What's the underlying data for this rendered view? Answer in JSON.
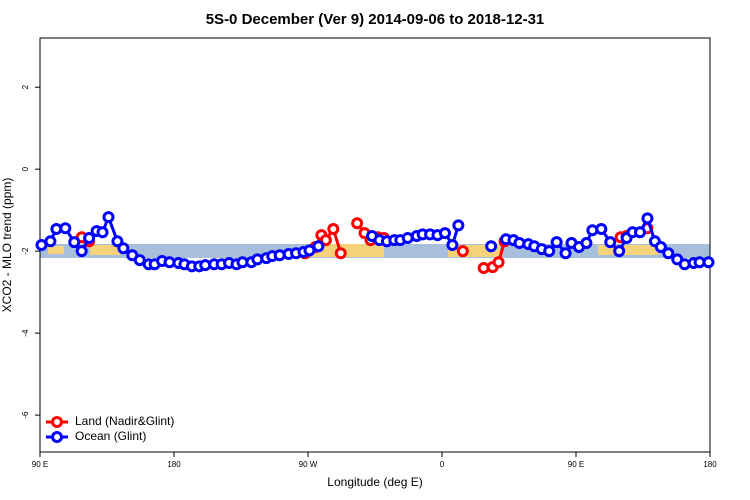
{
  "chart_data": {
    "type": "line",
    "title": "5S-0 December (Ver 9)   2014-09-06 to 2018-12-31",
    "x_label": "Longitude (deg E)",
    "y_label": "XCO2 - MLO trend (ppm)",
    "xlim": [
      90,
      540
    ],
    "xticks": [
      {
        "value": 90,
        "label": "90 E"
      },
      {
        "value": 180,
        "label": "180"
      },
      {
        "value": 270,
        "label": "90 W"
      },
      {
        "value": 360,
        "label": "0"
      },
      {
        "value": 450,
        "label": "90 E"
      },
      {
        "value": 540,
        "label": "180"
      }
    ],
    "ylim": [
      -6.9,
      3.2
    ],
    "yticks": [
      -6,
      -4,
      -2,
      0,
      2
    ],
    "legend": "bottom-left",
    "series": [
      {
        "name": "Land (Nadir&Glint)",
        "color": "#ff0000",
        "x": [
          118,
          123,
          null,
          268,
          275,
          279,
          282,
          287,
          292,
          null,
          303,
          308,
          312,
          317,
          321,
          null,
          374,
          null,
          388,
          394,
          398,
          402,
          null,
          480,
          484,
          null,
          498
        ],
        "values": [
          -1.66,
          -1.76,
          null,
          -2.05,
          -1.9,
          -1.61,
          -1.73,
          -1.46,
          -2.05,
          null,
          -1.32,
          -1.56,
          -1.73,
          -1.66,
          -1.68,
          null,
          -2.0,
          null,
          -2.41,
          -2.39,
          -2.27,
          -1.76,
          null,
          -1.66,
          -1.63,
          null,
          -1.44
        ]
      },
      {
        "name": "Ocean (Glint)",
        "color": "#0000ff",
        "x": [
          91,
          97,
          101,
          107,
          113,
          118,
          123,
          128,
          132,
          136,
          142,
          146,
          152,
          157,
          163,
          167,
          172,
          177,
          183,
          187,
          192,
          197,
          201,
          207,
          212,
          217,
          222,
          226,
          232,
          236,
          242,
          246,
          251,
          257,
          262,
          267,
          271,
          277,
          null,
          313,
          318,
          323,
          328,
          332,
          337,
          343,
          347,
          352,
          357,
          362,
          367,
          371,
          null,
          393,
          null,
          403,
          408,
          412,
          418,
          422,
          427,
          432,
          437,
          443,
          447,
          452,
          457,
          461,
          467,
          473,
          479,
          484,
          488,
          493,
          498,
          503,
          507,
          512,
          518,
          523,
          529,
          533,
          539
        ],
        "values": [
          -1.85,
          -1.76,
          -1.46,
          -1.44,
          -1.78,
          -2.0,
          -1.68,
          -1.51,
          -1.54,
          -1.17,
          -1.76,
          -1.93,
          -2.1,
          -2.22,
          -2.32,
          -2.32,
          -2.24,
          -2.27,
          -2.29,
          -2.32,
          -2.37,
          -2.37,
          -2.34,
          -2.32,
          -2.32,
          -2.29,
          -2.32,
          -2.27,
          -2.27,
          -2.2,
          -2.17,
          -2.12,
          -2.1,
          -2.07,
          -2.05,
          -2.02,
          -1.98,
          -1.88,
          null,
          -1.63,
          -1.73,
          -1.76,
          -1.73,
          -1.73,
          -1.68,
          -1.63,
          -1.59,
          -1.59,
          -1.61,
          -1.56,
          -1.85,
          -1.37,
          null,
          -1.88,
          null,
          -1.71,
          -1.73,
          -1.8,
          -1.83,
          -1.88,
          -1.95,
          -2.0,
          -1.78,
          -2.05,
          -1.8,
          -1.9,
          -1.8,
          -1.49,
          -1.46,
          -1.78,
          -2.0,
          -1.68,
          -1.54,
          -1.54,
          -1.2,
          -1.76,
          -1.9,
          -2.05,
          -2.2,
          -2.32,
          -2.29,
          -2.27,
          -2.27
        ]
      }
    ]
  }
}
